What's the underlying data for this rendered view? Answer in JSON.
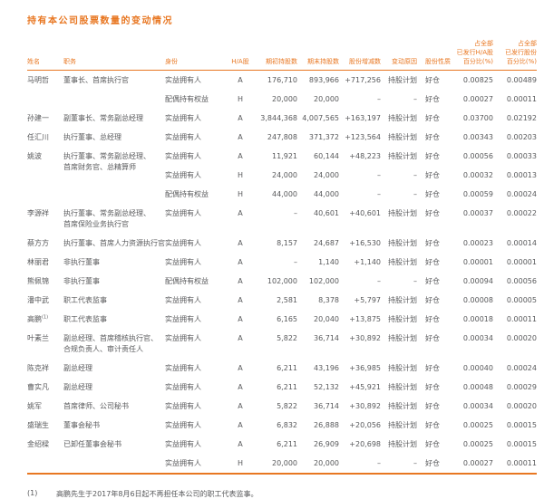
{
  "colors": {
    "accent": "#e87722",
    "text": "#58595b"
  },
  "page": {
    "title": "持有本公司股票数量的变动情况",
    "footnote_marker": "(1)",
    "footnote_text": "高鹏先生于2017年8月6日起不再担任本公司的职工代表监事。"
  },
  "table": {
    "headers": {
      "name": "姓名",
      "position": "职务",
      "capacity": "身份",
      "share_class": "H/A股",
      "begin": "期初持股数",
      "end": "期末持股数",
      "change": "股份增减数",
      "reason": "变动原因",
      "nature": "股份性质",
      "pct_class": [
        "占全部",
        "已发行H/A股",
        "百分比(%)"
      ],
      "pct_total": [
        "占全部",
        "已发行股份",
        "百分比(%)"
      ]
    },
    "rows": [
      {
        "name": "马明哲",
        "position": [
          "董事长、首席执行官"
        ],
        "entries": [
          {
            "capacity": "实益拥有人",
            "cls": "A",
            "begin": "176,710",
            "end": "893,966",
            "change": "+717,256",
            "reason": "持股计划",
            "nature": "好仓",
            "pct_class": "0.00825",
            "pct_total": "0.00489"
          },
          {
            "capacity": "配偶持有权益",
            "cls": "H",
            "begin": "20,000",
            "end": "20,000",
            "change": "–",
            "reason": "–",
            "nature": "好仓",
            "pct_class": "0.00027",
            "pct_total": "0.00011"
          }
        ]
      },
      {
        "name": "孙建一",
        "position": [
          "副董事长、常务副总经理"
        ],
        "entries": [
          {
            "capacity": "实益拥有人",
            "cls": "A",
            "begin": "3,844,368",
            "end": "4,007,565",
            "change": "+163,197",
            "reason": "持股计划",
            "nature": "好仓",
            "pct_class": "0.03700",
            "pct_total": "0.02192"
          }
        ]
      },
      {
        "name": "任汇川",
        "position": [
          "执行董事、总经理"
        ],
        "entries": [
          {
            "capacity": "实益拥有人",
            "cls": "A",
            "begin": "247,808",
            "end": "371,372",
            "change": "+123,564",
            "reason": "持股计划",
            "nature": "好仓",
            "pct_class": "0.00343",
            "pct_total": "0.00203"
          }
        ]
      },
      {
        "name": "姚波",
        "position": [
          "执行董事、常务副总经理、",
          "首席财务官、总精算师"
        ],
        "entries": [
          {
            "capacity": "实益拥有人",
            "cls": "A",
            "begin": "11,921",
            "end": "60,144",
            "change": "+48,223",
            "reason": "持股计划",
            "nature": "好仓",
            "pct_class": "0.00056",
            "pct_total": "0.00033"
          },
          {
            "capacity": "实益拥有人",
            "cls": "H",
            "begin": "24,000",
            "end": "24,000",
            "change": "–",
            "reason": "–",
            "nature": "好仓",
            "pct_class": "0.00032",
            "pct_total": "0.00013"
          },
          {
            "capacity": "配偶持有权益",
            "cls": "H",
            "begin": "44,000",
            "end": "44,000",
            "change": "–",
            "reason": "–",
            "nature": "好仓",
            "pct_class": "0.00059",
            "pct_total": "0.00024"
          }
        ]
      },
      {
        "name": "李源祥",
        "position": [
          "执行董事、常务副总经理、",
          "首席保险业务执行官"
        ],
        "entries": [
          {
            "capacity": "实益拥有人",
            "cls": "A",
            "begin": "–",
            "end": "40,601",
            "change": "+40,601",
            "reason": "持股计划",
            "nature": "好仓",
            "pct_class": "0.00037",
            "pct_total": "0.00022"
          }
        ]
      },
      {
        "name": "蔡方方",
        "position": [
          "执行董事、首席人力资源执行官"
        ],
        "entries": [
          {
            "capacity": "实益拥有人",
            "cls": "A",
            "begin": "8,157",
            "end": "24,687",
            "change": "+16,530",
            "reason": "持股计划",
            "nature": "好仓",
            "pct_class": "0.00023",
            "pct_total": "0.00014"
          }
        ]
      },
      {
        "name": "林丽君",
        "position": [
          "非执行董事"
        ],
        "entries": [
          {
            "capacity": "实益拥有人",
            "cls": "A",
            "begin": "–",
            "end": "1,140",
            "change": "+1,140",
            "reason": "持股计划",
            "nature": "好仓",
            "pct_class": "0.00001",
            "pct_total": "0.00001"
          }
        ]
      },
      {
        "name": "熊佩锦",
        "position": [
          "非执行董事"
        ],
        "entries": [
          {
            "capacity": "配偶持有权益",
            "cls": "A",
            "begin": "102,000",
            "end": "102,000",
            "change": "–",
            "reason": "–",
            "nature": "好仓",
            "pct_class": "0.00094",
            "pct_total": "0.00056"
          }
        ]
      },
      {
        "name": "潘中武",
        "position": [
          "职工代表监事"
        ],
        "entries": [
          {
            "capacity": "实益拥有人",
            "cls": "A",
            "begin": "2,581",
            "end": "8,378",
            "change": "+5,797",
            "reason": "持股计划",
            "nature": "好仓",
            "pct_class": "0.00008",
            "pct_total": "0.00005"
          }
        ]
      },
      {
        "name": "高鹏",
        "sup": "(1)",
        "position": [
          "职工代表监事"
        ],
        "entries": [
          {
            "capacity": "实益拥有人",
            "cls": "A",
            "begin": "6,165",
            "end": "20,040",
            "change": "+13,875",
            "reason": "持股计划",
            "nature": "好仓",
            "pct_class": "0.00018",
            "pct_total": "0.00011"
          }
        ]
      },
      {
        "name": "叶素兰",
        "position": [
          "副总经理、首席稽核执行官、",
          "合规负责人、审计责任人"
        ],
        "entries": [
          {
            "capacity": "实益拥有人",
            "cls": "A",
            "begin": "5,822",
            "end": "36,714",
            "change": "+30,892",
            "reason": "持股计划",
            "nature": "好仓",
            "pct_class": "0.00034",
            "pct_total": "0.00020"
          }
        ]
      },
      {
        "name": "陈克祥",
        "position": [
          "副总经理"
        ],
        "entries": [
          {
            "capacity": "实益拥有人",
            "cls": "A",
            "begin": "6,211",
            "end": "43,196",
            "change": "+36,985",
            "reason": "持股计划",
            "nature": "好仓",
            "pct_class": "0.00040",
            "pct_total": "0.00024"
          }
        ]
      },
      {
        "name": "曹实凡",
        "position": [
          "副总经理"
        ],
        "entries": [
          {
            "capacity": "实益拥有人",
            "cls": "A",
            "begin": "6,211",
            "end": "52,132",
            "change": "+45,921",
            "reason": "持股计划",
            "nature": "好仓",
            "pct_class": "0.00048",
            "pct_total": "0.00029"
          }
        ]
      },
      {
        "name": "姚军",
        "position": [
          "首席律师、公司秘书"
        ],
        "entries": [
          {
            "capacity": "实益拥有人",
            "cls": "A",
            "begin": "5,822",
            "end": "36,714",
            "change": "+30,892",
            "reason": "持股计划",
            "nature": "好仓",
            "pct_class": "0.00034",
            "pct_total": "0.00020"
          }
        ]
      },
      {
        "name": "盛瑞生",
        "position": [
          "董事会秘书"
        ],
        "entries": [
          {
            "capacity": "实益拥有人",
            "cls": "A",
            "begin": "6,832",
            "end": "26,888",
            "change": "+20,056",
            "reason": "持股计划",
            "nature": "好仓",
            "pct_class": "0.00025",
            "pct_total": "0.00015"
          }
        ]
      },
      {
        "name": "金绍樑",
        "position": [
          "已卸任董事会秘书"
        ],
        "entries": [
          {
            "capacity": "实益拥有人",
            "cls": "A",
            "begin": "6,211",
            "end": "26,909",
            "change": "+20,698",
            "reason": "持股计划",
            "nature": "好仓",
            "pct_class": "0.00025",
            "pct_total": "0.00015"
          },
          {
            "capacity": "实益拥有人",
            "cls": "H",
            "begin": "20,000",
            "end": "20,000",
            "change": "–",
            "reason": "–",
            "nature": "好仓",
            "pct_class": "0.00027",
            "pct_total": "0.00011"
          }
        ]
      }
    ]
  }
}
